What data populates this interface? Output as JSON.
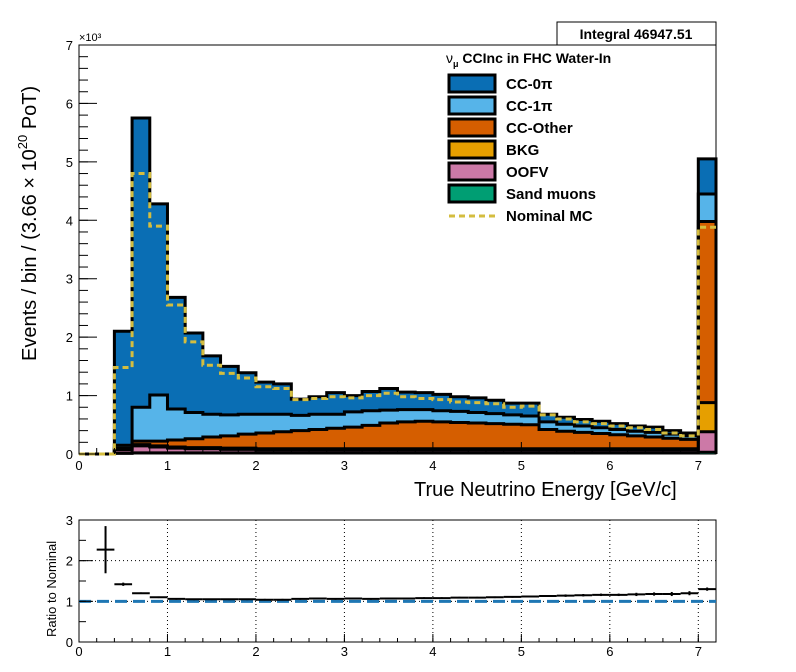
{
  "integral_label": "Integral 46947.51",
  "colors": {
    "cc0pi": "#0a6eb4",
    "cc1pi": "#56b4e9",
    "ccother": "#d55e00",
    "bkg": "#e69f00",
    "oofv": "#cc79a7",
    "sand": "#009e73",
    "nominal": "#d4bd3f",
    "ratio_line": "#1f77b4"
  },
  "chart_data": [
    {
      "type": "area",
      "stacked": true,
      "title": "",
      "exponent_label": "×10³",
      "xlabel": "True Neutrino Energy [GeV/c]",
      "ylabel_parts": [
        "Events / bin / (3.66 ",
        "× 10",
        "20",
        " PoT)"
      ],
      "xlim": [
        0,
        7.2
      ],
      "ylim": [
        0,
        7
      ],
      "xticks": [
        0,
        1,
        2,
        3,
        4,
        5,
        6,
        7
      ],
      "yticks": [
        0,
        1,
        2,
        3,
        4,
        5,
        6,
        7
      ],
      "grid": false,
      "legend_title": [
        "ν",
        "μ",
        " CCInc in FHC Water-In"
      ],
      "legend_position": "top-right",
      "bin_edges": [
        0.0,
        0.2,
        0.4,
        0.6,
        0.8,
        1.0,
        1.2,
        1.4,
        1.6,
        1.8,
        2.0,
        2.2,
        2.4,
        2.6,
        2.8,
        3.0,
        3.2,
        3.4,
        3.6,
        3.8,
        4.0,
        4.2,
        4.4,
        4.6,
        4.8,
        5.0,
        5.2,
        5.4,
        5.6,
        5.8,
        6.0,
        6.2,
        6.4,
        6.6,
        6.8,
        7.0,
        7.2
      ],
      "series": [
        {
          "name": "Sand muons",
          "color_key": "sand",
          "values": [
            0,
            0,
            0.01,
            0.02,
            0.02,
            0.02,
            0.02,
            0.02,
            0.02,
            0.02,
            0.02,
            0.02,
            0.02,
            0.02,
            0.02,
            0.02,
            0.02,
            0.02,
            0.02,
            0.02,
            0.02,
            0.02,
            0.02,
            0.02,
            0.02,
            0.02,
            0.02,
            0.02,
            0.02,
            0.02,
            0.02,
            0.02,
            0.02,
            0.02,
            0.02,
            0.03
          ]
        },
        {
          "name": "OOFV",
          "color_key": "oofv",
          "values": [
            0,
            0,
            0.06,
            0.12,
            0.1,
            0.08,
            0.07,
            0.07,
            0.06,
            0.06,
            0.05,
            0.05,
            0.05,
            0.05,
            0.05,
            0.05,
            0.05,
            0.05,
            0.05,
            0.05,
            0.05,
            0.05,
            0.05,
            0.05,
            0.05,
            0.05,
            0.05,
            0.05,
            0.05,
            0.05,
            0.05,
            0.05,
            0.05,
            0.05,
            0.05,
            0.35
          ]
        },
        {
          "name": "BKG",
          "color_key": "bkg",
          "values": [
            0,
            0,
            0.01,
            0.02,
            0.02,
            0.02,
            0.02,
            0.02,
            0.02,
            0.02,
            0.02,
            0.02,
            0.02,
            0.02,
            0.02,
            0.02,
            0.02,
            0.02,
            0.02,
            0.02,
            0.02,
            0.02,
            0.02,
            0.02,
            0.02,
            0.02,
            0.02,
            0.02,
            0.02,
            0.02,
            0.02,
            0.02,
            0.02,
            0.02,
            0.02,
            0.5
          ]
        },
        {
          "name": "CC-Other",
          "color_key": "ccother",
          "values": [
            0,
            0,
            0.02,
            0.06,
            0.08,
            0.12,
            0.15,
            0.18,
            0.21,
            0.24,
            0.27,
            0.29,
            0.31,
            0.33,
            0.35,
            0.37,
            0.4,
            0.44,
            0.46,
            0.47,
            0.46,
            0.45,
            0.44,
            0.43,
            0.42,
            0.41,
            0.33,
            0.3,
            0.28,
            0.26,
            0.24,
            0.22,
            0.2,
            0.18,
            0.16,
            3.1
          ]
        },
        {
          "name": "CC-1π",
          "color_key": "cc1pi",
          "values": [
            0,
            0,
            0.05,
            0.58,
            0.79,
            0.53,
            0.45,
            0.39,
            0.36,
            0.34,
            0.32,
            0.3,
            0.26,
            0.26,
            0.24,
            0.26,
            0.25,
            0.22,
            0.21,
            0.2,
            0.19,
            0.19,
            0.18,
            0.17,
            0.16,
            0.15,
            0.13,
            0.12,
            0.11,
            0.1,
            0.09,
            0.08,
            0.08,
            0.07,
            0.06,
            0.47
          ]
        },
        {
          "name": "CC-0π",
          "color_key": "cc0pi",
          "values": [
            0,
            0,
            1.95,
            4.95,
            3.27,
            1.91,
            1.36,
            1.0,
            0.83,
            0.71,
            0.55,
            0.52,
            0.28,
            0.3,
            0.37,
            0.28,
            0.33,
            0.37,
            0.3,
            0.29,
            0.28,
            0.25,
            0.25,
            0.23,
            0.2,
            0.22,
            0.13,
            0.12,
            0.11,
            0.11,
            0.1,
            0.09,
            0.09,
            0.06,
            0.05,
            0.6
          ]
        }
      ],
      "legend_order": [
        "CC-0π",
        "CC-1π",
        "CC-Other",
        "BKG",
        "OOFV",
        "Sand muons",
        "Nominal MC"
      ],
      "nominal_mc": {
        "name": "Nominal MC",
        "color_key": "nominal",
        "values": [
          0,
          0,
          1.48,
          4.8,
          3.9,
          2.55,
          1.92,
          1.52,
          1.38,
          1.3,
          1.15,
          1.12,
          0.93,
          0.95,
          0.98,
          0.96,
          1.0,
          1.04,
          0.98,
          0.95,
          0.93,
          0.89,
          0.88,
          0.86,
          0.8,
          0.82,
          0.67,
          0.6,
          0.55,
          0.52,
          0.48,
          0.45,
          0.42,
          0.36,
          0.31,
          3.88
        ]
      }
    },
    {
      "type": "scatter",
      "title": "",
      "xlabel": "",
      "ylabel": "Ratio to Nominal",
      "xlim": [
        0,
        7.2
      ],
      "ylim": [
        0,
        3
      ],
      "xticks": [
        0,
        1,
        2,
        3,
        4,
        5,
        6,
        7
      ],
      "yticks": [
        0,
        1,
        2,
        3
      ],
      "grid": true,
      "reference": 1.0,
      "x": [
        0.3,
        0.5,
        0.7,
        0.9,
        1.1,
        1.3,
        1.5,
        1.7,
        1.9,
        2.1,
        2.3,
        2.5,
        2.7,
        2.9,
        3.1,
        3.3,
        3.5,
        3.7,
        3.9,
        4.1,
        4.3,
        4.5,
        4.7,
        4.9,
        5.1,
        5.3,
        5.5,
        5.7,
        5.9,
        6.1,
        6.3,
        6.5,
        6.7,
        6.9,
        7.1
      ],
      "xerr": 0.1,
      "y": [
        2.27,
        1.42,
        1.2,
        1.1,
        1.06,
        1.05,
        1.05,
        1.05,
        1.05,
        1.04,
        1.04,
        1.06,
        1.07,
        1.06,
        1.07,
        1.06,
        1.07,
        1.07,
        1.08,
        1.08,
        1.09,
        1.09,
        1.1,
        1.11,
        1.12,
        1.13,
        1.14,
        1.15,
        1.16,
        1.16,
        1.17,
        1.18,
        1.18,
        1.2,
        1.3
      ],
      "yerr": [
        0.58,
        0.04,
        0.02,
        0.02,
        0.02,
        0.02,
        0.02,
        0.02,
        0.02,
        0.02,
        0.02,
        0.02,
        0.02,
        0.02,
        0.02,
        0.02,
        0.02,
        0.02,
        0.02,
        0.02,
        0.02,
        0.02,
        0.02,
        0.02,
        0.02,
        0.02,
        0.03,
        0.03,
        0.03,
        0.03,
        0.04,
        0.04,
        0.05,
        0.05,
        0.04
      ]
    }
  ]
}
